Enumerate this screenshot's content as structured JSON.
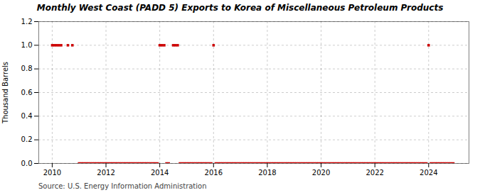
{
  "chart_data": {
    "type": "scatter",
    "title": "Monthly West Coast (PADD 5) Exports to Korea of Miscellaneous Petroleum Products",
    "ylabel": "Thousand Barrels",
    "annotations": [
      "Source: U.S. Energy Information Administration"
    ],
    "color": "#cc0000",
    "marker": "square",
    "grid": true,
    "xlim": [
      2009.5,
      2025.5
    ],
    "xticks": [
      2010,
      2012,
      2014,
      2016,
      2018,
      2020,
      2022,
      2024
    ],
    "ylim": [
      0.0,
      1.2
    ],
    "yticks": [
      {
        "value": 0.0,
        "label": "0.0"
      },
      0.2,
      0.4,
      0.6,
      0.8,
      {
        "value": 1.0,
        "label": "1.0"
      },
      1.2
    ],
    "x": [
      2010.0,
      2010.083,
      2010.167,
      2010.25,
      2010.333,
      2010.583,
      2010.75,
      2011.0,
      2011.083,
      2011.167,
      2011.25,
      2011.333,
      2011.417,
      2011.5,
      2011.583,
      2011.667,
      2011.75,
      2011.833,
      2011.917,
      2012.0,
      2012.083,
      2012.167,
      2012.25,
      2012.333,
      2012.417,
      2012.5,
      2012.583,
      2012.667,
      2012.75,
      2012.833,
      2012.917,
      2013.0,
      2013.083,
      2013.167,
      2013.25,
      2013.333,
      2013.417,
      2013.5,
      2013.583,
      2013.667,
      2013.75,
      2013.833,
      2013.917,
      2014.0,
      2014.083,
      2014.167,
      2014.25,
      2014.333,
      2014.5,
      2014.583,
      2014.667,
      2014.75,
      2014.833,
      2014.917,
      2015.0,
      2015.083,
      2015.167,
      2015.25,
      2015.333,
      2015.417,
      2015.5,
      2015.583,
      2015.667,
      2015.75,
      2015.833,
      2015.917,
      2016.0,
      2016.083,
      2016.167,
      2016.25,
      2016.333,
      2016.417,
      2016.5,
      2016.583,
      2016.667,
      2016.75,
      2016.833,
      2016.917,
      2017.0,
      2017.083,
      2017.167,
      2017.25,
      2017.333,
      2017.417,
      2017.5,
      2017.583,
      2017.667,
      2017.75,
      2017.833,
      2017.917,
      2018.0,
      2018.083,
      2018.167,
      2018.25,
      2018.333,
      2018.417,
      2018.5,
      2018.583,
      2018.667,
      2018.75,
      2018.833,
      2018.917,
      2019.0,
      2019.083,
      2019.167,
      2019.25,
      2019.333,
      2019.417,
      2019.5,
      2019.583,
      2019.667,
      2019.75,
      2019.833,
      2019.917,
      2020.0,
      2020.083,
      2020.167,
      2020.25,
      2020.333,
      2020.417,
      2020.5,
      2020.583,
      2020.667,
      2020.75,
      2020.833,
      2020.917,
      2021.0,
      2021.083,
      2021.167,
      2021.25,
      2021.333,
      2021.417,
      2021.5,
      2021.583,
      2021.667,
      2021.75,
      2021.833,
      2021.917,
      2022.0,
      2022.083,
      2022.167,
      2022.25,
      2022.333,
      2022.417,
      2022.5,
      2022.583,
      2022.667,
      2022.75,
      2022.833,
      2022.917,
      2023.0,
      2023.083,
      2023.167,
      2023.25,
      2023.333,
      2023.417,
      2023.5,
      2023.583,
      2023.667,
      2023.75,
      2023.833,
      2023.917,
      2024.0,
      2024.083,
      2024.167,
      2024.25,
      2024.333,
      2024.417,
      2024.5,
      2024.583,
      2024.667,
      2024.75,
      2024.833,
      2024.917
    ],
    "values": [
      1,
      1,
      1,
      1,
      1,
      1,
      1,
      0,
      0,
      0,
      0,
      0,
      0,
      0,
      0,
      0,
      0,
      0,
      0,
      0,
      0,
      0,
      0,
      0,
      0,
      0,
      0,
      0,
      0,
      0,
      0,
      0,
      0,
      0,
      0,
      0,
      0,
      0,
      0,
      0,
      0,
      0,
      0,
      1,
      1,
      1,
      0,
      0,
      1,
      1,
      1,
      0,
      0,
      0,
      0,
      0,
      0,
      0,
      0,
      0,
      0,
      0,
      0,
      0,
      0,
      0,
      1,
      0,
      0,
      0,
      0,
      0,
      0,
      0,
      0,
      0,
      0,
      0,
      0,
      0,
      0,
      0,
      0,
      0,
      0,
      0,
      0,
      0,
      0,
      0,
      0,
      0,
      0,
      0,
      0,
      0,
      0,
      0,
      0,
      0,
      0,
      0,
      0,
      0,
      0,
      0,
      0,
      0,
      0,
      0,
      0,
      0,
      0,
      0,
      0,
      0,
      0,
      0,
      0,
      0,
      0,
      0,
      0,
      0,
      0,
      0,
      0,
      0,
      0,
      0,
      0,
      0,
      0,
      0,
      0,
      0,
      0,
      0,
      0,
      0,
      0,
      0,
      0,
      0,
      0,
      0,
      0,
      0,
      0,
      0,
      0,
      0,
      0,
      0,
      0,
      0,
      0,
      0,
      0,
      0,
      0,
      0,
      1,
      0,
      0,
      0,
      0,
      0,
      0,
      0,
      0,
      0,
      0,
      0
    ]
  }
}
